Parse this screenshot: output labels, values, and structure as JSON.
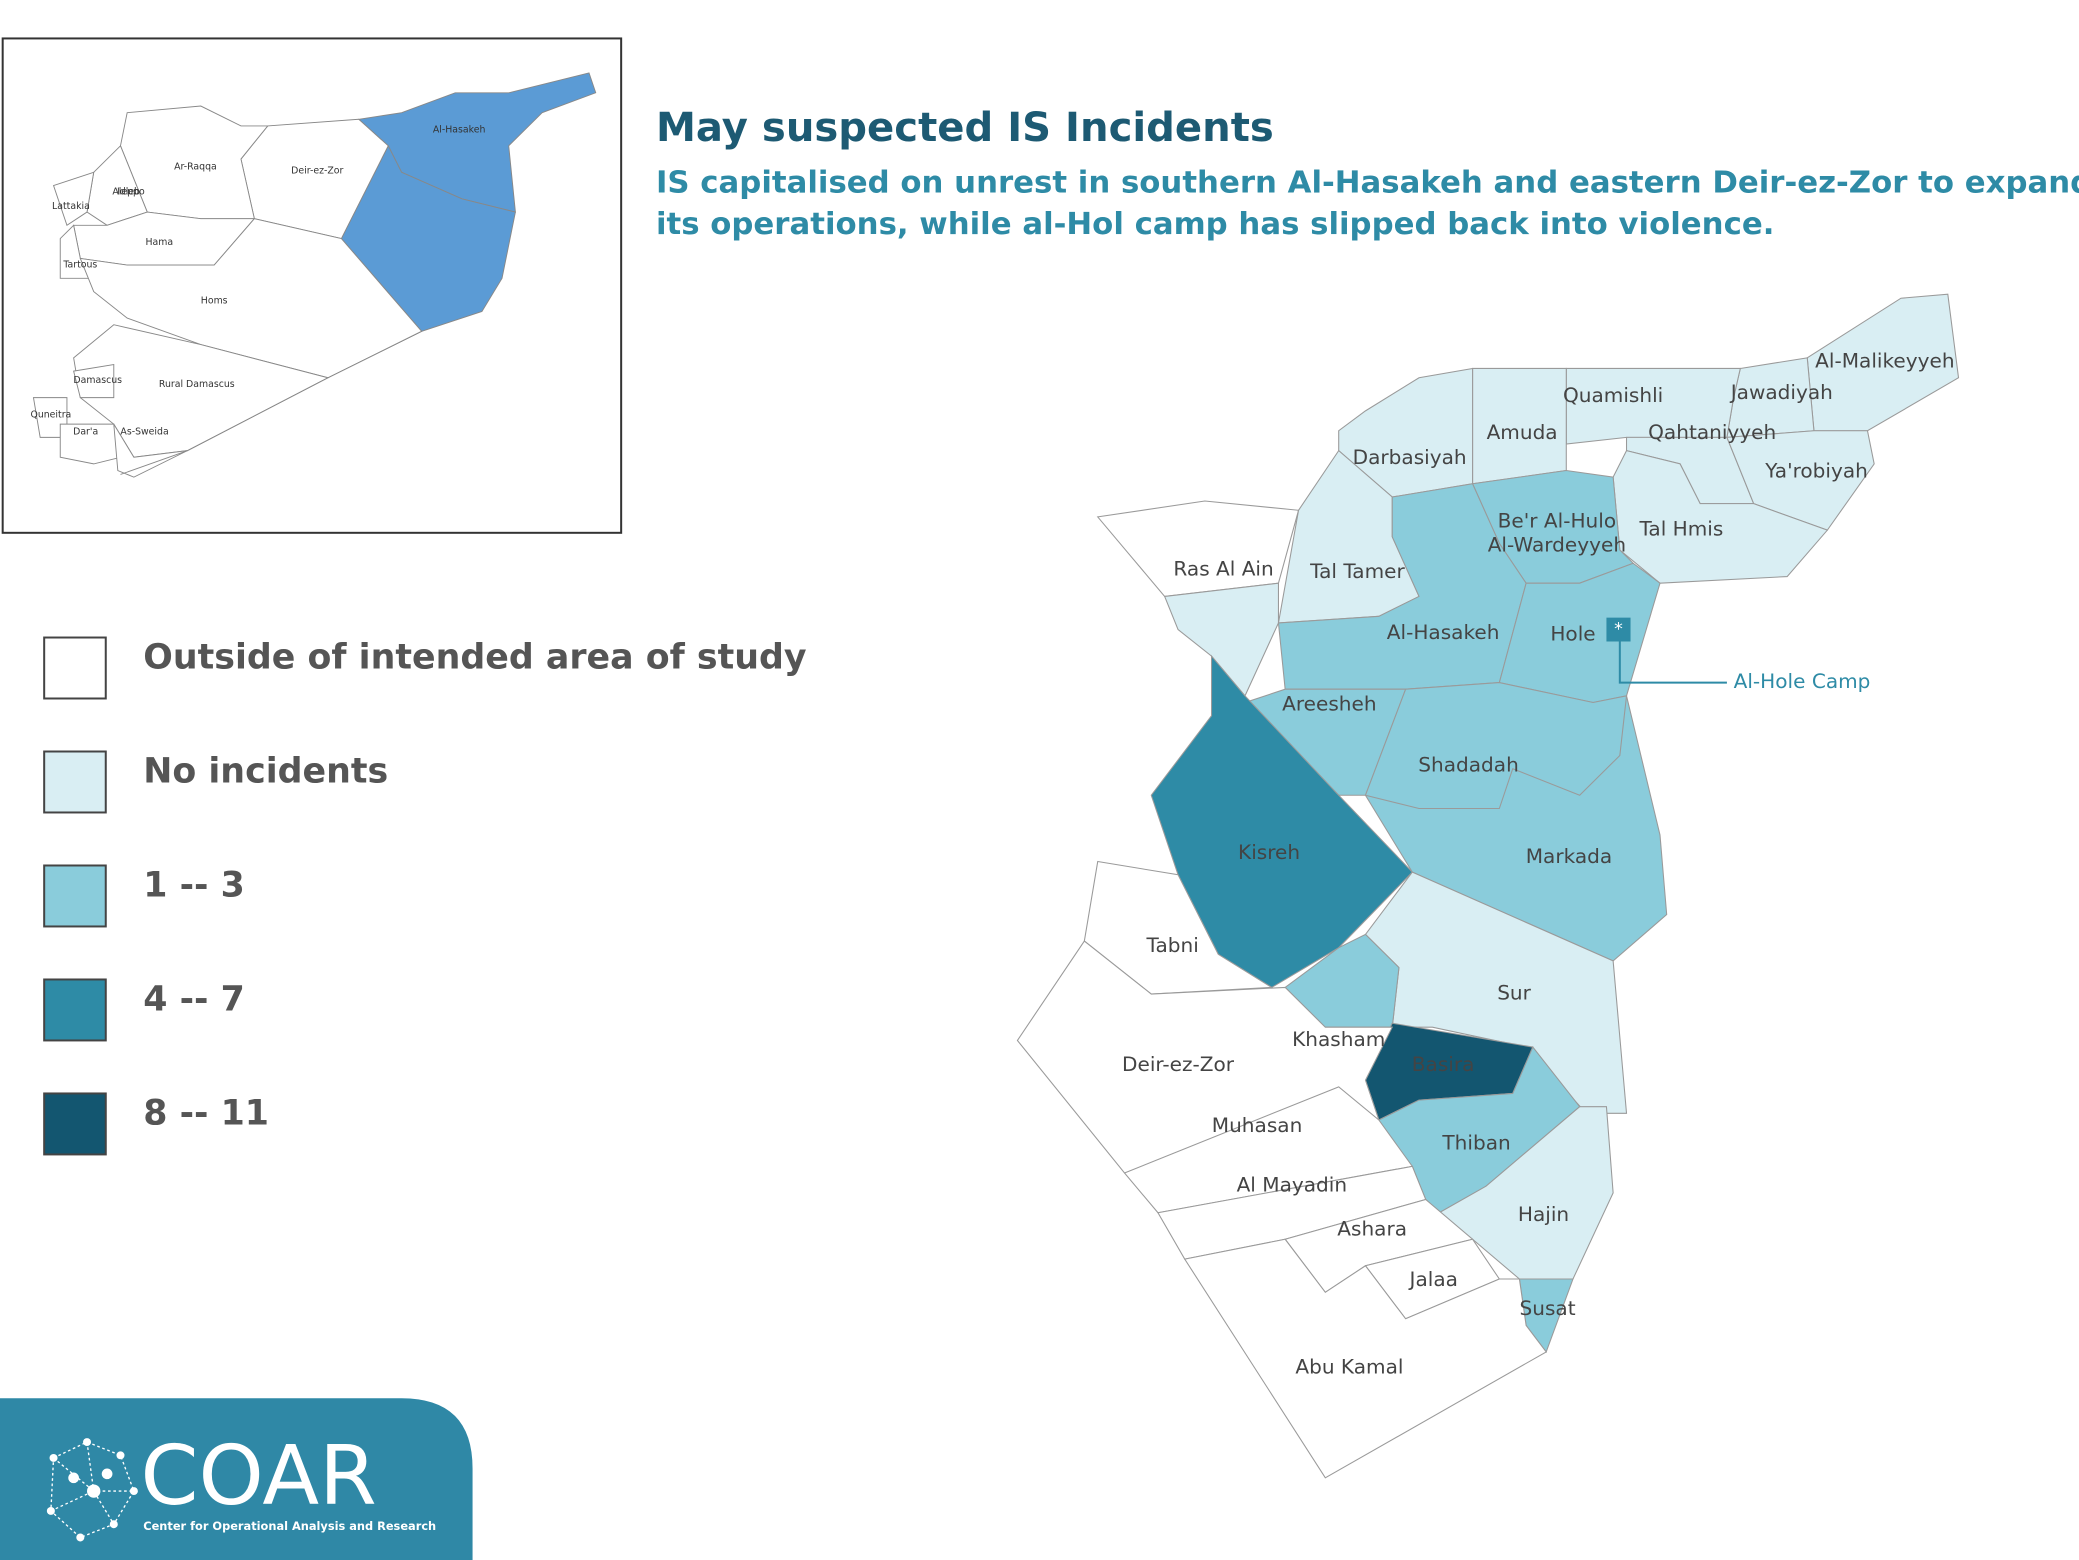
{
  "title": "May suspected IS Incidents",
  "subtitle": [
    "IS capitalised on unrest in southern Al-Hasakeh and eastern Deir-ez-Zor to expand",
    "its operations, while al-Hol camp has slipped back into violence."
  ],
  "legend": [
    {
      "label": "Outside of intended area of study",
      "color": "#ffffff"
    },
    {
      "label": "No incidents",
      "color": "#d9eef3"
    },
    {
      "label": "1 -- 3",
      "color": "#8accdb"
    },
    {
      "label": "4 -- 7",
      "color": "#2e8ba6"
    },
    {
      "label": "8 -- 11",
      "color": "#135670"
    }
  ],
  "regions": [
    {
      "name": "Al-Malikeyyeh",
      "class": 1
    },
    {
      "name": "Jawadiyah",
      "class": 1
    },
    {
      "name": "Quamishli",
      "class": 1
    },
    {
      "name": "Qahtaniyyeh",
      "class": 1
    },
    {
      "name": "Ya'robiyah",
      "class": 1
    },
    {
      "name": "Amuda",
      "class": 1
    },
    {
      "name": "Darbasiyah",
      "class": 1
    },
    {
      "name": "Tal Hmis",
      "class": 1
    },
    {
      "name": [
        "Be'r Al-Hulo",
        "Al-Wardeyyeh"
      ],
      "class": 2
    },
    {
      "name": "Tal Tamer",
      "class": 1
    },
    {
      "name": "Ras Al Ain",
      "class": 1
    },
    {
      "name": "Al-Hasakeh",
      "class": 2
    },
    {
      "name": "Hole",
      "class": 2
    },
    {
      "name": "Areesheh",
      "class": 2
    },
    {
      "name": "Markada",
      "class": 2
    },
    {
      "name": "Shadadah",
      "class": 2
    },
    {
      "name": "Kisreh",
      "class": 3
    },
    {
      "name": "Tabni",
      "class": 0
    },
    {
      "name": "Sur",
      "class": 1
    },
    {
      "name": "Khasham",
      "class": 2
    },
    {
      "name": "Basira",
      "class": 4
    },
    {
      "name": "Deir-ez-Zor",
      "class": 0
    },
    {
      "name": "Thiban",
      "class": 2
    },
    {
      "name": "Muhasan",
      "class": 0
    },
    {
      "name": "Al Mayadin",
      "class": 0
    },
    {
      "name": "Hajin",
      "class": 1
    },
    {
      "name": "Ashara",
      "class": 0
    },
    {
      "name": "Jalaa",
      "class": 0
    },
    {
      "name": "Susat",
      "class": 2
    },
    {
      "name": "Abu Kamal",
      "class": 0
    }
  ],
  "annotation": {
    "marker": "*",
    "label": "Al-Hole Camp"
  },
  "inset": {
    "highlight_color": "#5b9bd5",
    "regions": [
      {
        "name": "Al-Hasakeh",
        "highlight": true
      },
      {
        "name": "Deir-ez-Zor",
        "highlight": true
      },
      {
        "name": "Ar-Raqqa",
        "highlight": false
      },
      {
        "name": "Aleppo",
        "highlight": false
      },
      {
        "name": "Idleb",
        "highlight": false
      },
      {
        "name": "Lattakia",
        "highlight": false
      },
      {
        "name": "Hama",
        "highlight": false
      },
      {
        "name": "Tartous",
        "highlight": false
      },
      {
        "name": "Homs",
        "highlight": false
      },
      {
        "name": "Rural Damascus",
        "highlight": false
      },
      {
        "name": "Damascus",
        "highlight": false
      },
      {
        "name": "Quneitra",
        "highlight": false
      },
      {
        "name": "Dar'a",
        "highlight": false
      },
      {
        "name": "As-Sweida",
        "highlight": false
      }
    ]
  },
  "logo": {
    "name": "COAR",
    "tagline": "Center for Operational Analysis and Research"
  }
}
